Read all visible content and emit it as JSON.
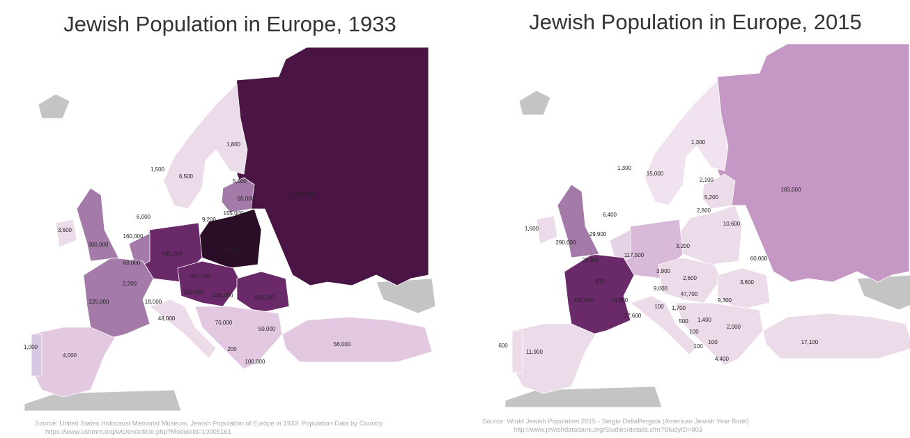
{
  "maps": [
    {
      "title": "Jewish Population in Europe, 1933",
      "labels": [
        "1,800",
        "1,500",
        "6,500",
        "5,000",
        "95,000",
        "2,525,000",
        "155,000",
        "6,000",
        "9,200",
        "3,600",
        "160,000",
        "300,000",
        "565,000",
        "3,000,000",
        "60,000",
        "2,200",
        "357,000",
        "250,000",
        "445,000",
        "980,000",
        "225,000",
        "18,000",
        "48,000",
        "70,000",
        "50,000",
        "56,000",
        "1,000",
        "4,000",
        "200",
        "100,000"
      ],
      "source": [
        "Source: United States Holocaust Memorial Museum, Jewish Population of Europe in 1933: Population Data by Country",
        "https://www.ushmm.org/wlc/en/article.php?ModuleId=10005161"
      ]
    },
    {
      "title": "Jewish Population in Europe, 2015",
      "labels": [
        "1,300",
        "1,300",
        "15,000",
        "2,100",
        "5,200",
        "183,000",
        "2,800",
        "6,400",
        "10,600",
        "1,600",
        "29,900",
        "290,000",
        "3,200",
        "117,500",
        "29,800",
        "60,000",
        "3,900",
        "600",
        "2,600",
        "3,600",
        "9,000",
        "47,700",
        "467,500",
        "18,900",
        "100",
        "1,700",
        "9,300",
        "27,600",
        "500",
        "1,400",
        "2,000",
        "100",
        "100",
        "17,100",
        "600",
        "11,900",
        "100",
        "4,400"
      ],
      "source": [
        "Source: World Jewish Population 2015 - Sergio DellaPergola (American Jewish Year Book)",
        "http://www.jewishdatabank.org/Studies/details.cfm?StudyID=803"
      ]
    }
  ]
}
